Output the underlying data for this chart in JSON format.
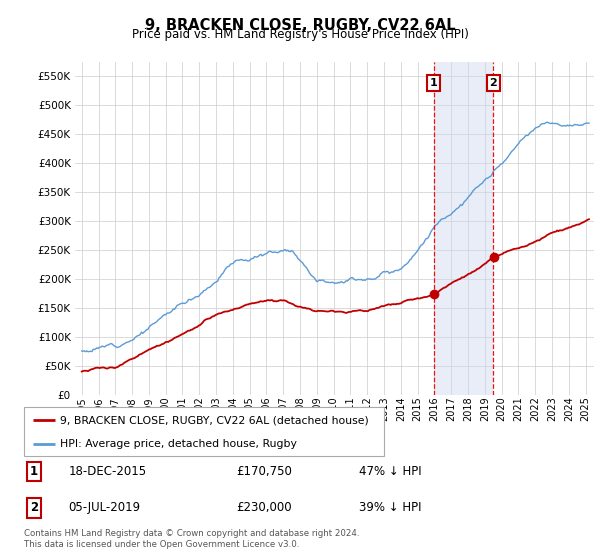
{
  "title": "9, BRACKEN CLOSE, RUGBY, CV22 6AL",
  "subtitle": "Price paid vs. HM Land Registry's House Price Index (HPI)",
  "hpi_label": "HPI: Average price, detached house, Rugby",
  "price_label": "9, BRACKEN CLOSE, RUGBY, CV22 6AL (detached house)",
  "ann1_box": "1",
  "ann1_date": "18-DEC-2015",
  "ann1_price": "£170,750",
  "ann1_pct": "47% ↓ HPI",
  "ann1_x": 2015.96,
  "ann1_y": 170750,
  "ann2_box": "2",
  "ann2_date": "05-JUL-2019",
  "ann2_price": "£230,000",
  "ann2_pct": "39% ↓ HPI",
  "ann2_x": 2019.5,
  "ann2_y": 230000,
  "footer": "Contains HM Land Registry data © Crown copyright and database right 2024.\nThis data is licensed under the Open Government Licence v3.0.",
  "hpi_color": "#5b9bd5",
  "price_color": "#c00000",
  "shade_color": "#ccd9ee",
  "vline_color": "#ee1111",
  "grid_color": "#cccccc",
  "ylim": [
    0,
    575000
  ],
  "yticks": [
    0,
    50000,
    100000,
    150000,
    200000,
    250000,
    300000,
    350000,
    400000,
    450000,
    500000,
    550000
  ],
  "xlim_start": 1994.6,
  "xlim_end": 2025.5,
  "xticks": [
    1995,
    1996,
    1997,
    1998,
    1999,
    2000,
    2001,
    2002,
    2003,
    2004,
    2005,
    2006,
    2007,
    2008,
    2009,
    2010,
    2011,
    2012,
    2013,
    2014,
    2015,
    2016,
    2017,
    2018,
    2019,
    2020,
    2021,
    2022,
    2023,
    2024,
    2025
  ]
}
